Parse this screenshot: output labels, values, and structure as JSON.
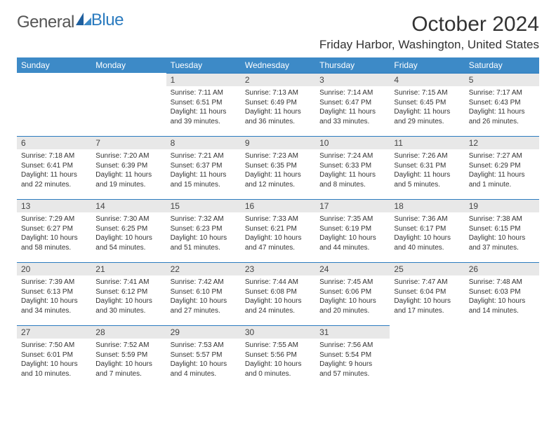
{
  "brand": {
    "part1": "General",
    "part2": "Blue"
  },
  "title": "October 2024",
  "location": "Friday Harbor, Washington, United States",
  "header_bg": "#3d8ac7",
  "daynum_bg": "#e8e8e8",
  "border_color": "#2b7bbf",
  "weekdays": [
    "Sunday",
    "Monday",
    "Tuesday",
    "Wednesday",
    "Thursday",
    "Friday",
    "Saturday"
  ],
  "weeks": [
    [
      null,
      null,
      {
        "n": "1",
        "sr": "Sunrise: 7:11 AM",
        "ss": "Sunset: 6:51 PM",
        "dl": "Daylight: 11 hours and 39 minutes."
      },
      {
        "n": "2",
        "sr": "Sunrise: 7:13 AM",
        "ss": "Sunset: 6:49 PM",
        "dl": "Daylight: 11 hours and 36 minutes."
      },
      {
        "n": "3",
        "sr": "Sunrise: 7:14 AM",
        "ss": "Sunset: 6:47 PM",
        "dl": "Daylight: 11 hours and 33 minutes."
      },
      {
        "n": "4",
        "sr": "Sunrise: 7:15 AM",
        "ss": "Sunset: 6:45 PM",
        "dl": "Daylight: 11 hours and 29 minutes."
      },
      {
        "n": "5",
        "sr": "Sunrise: 7:17 AM",
        "ss": "Sunset: 6:43 PM",
        "dl": "Daylight: 11 hours and 26 minutes."
      }
    ],
    [
      {
        "n": "6",
        "sr": "Sunrise: 7:18 AM",
        "ss": "Sunset: 6:41 PM",
        "dl": "Daylight: 11 hours and 22 minutes."
      },
      {
        "n": "7",
        "sr": "Sunrise: 7:20 AM",
        "ss": "Sunset: 6:39 PM",
        "dl": "Daylight: 11 hours and 19 minutes."
      },
      {
        "n": "8",
        "sr": "Sunrise: 7:21 AM",
        "ss": "Sunset: 6:37 PM",
        "dl": "Daylight: 11 hours and 15 minutes."
      },
      {
        "n": "9",
        "sr": "Sunrise: 7:23 AM",
        "ss": "Sunset: 6:35 PM",
        "dl": "Daylight: 11 hours and 12 minutes."
      },
      {
        "n": "10",
        "sr": "Sunrise: 7:24 AM",
        "ss": "Sunset: 6:33 PM",
        "dl": "Daylight: 11 hours and 8 minutes."
      },
      {
        "n": "11",
        "sr": "Sunrise: 7:26 AM",
        "ss": "Sunset: 6:31 PM",
        "dl": "Daylight: 11 hours and 5 minutes."
      },
      {
        "n": "12",
        "sr": "Sunrise: 7:27 AM",
        "ss": "Sunset: 6:29 PM",
        "dl": "Daylight: 11 hours and 1 minute."
      }
    ],
    [
      {
        "n": "13",
        "sr": "Sunrise: 7:29 AM",
        "ss": "Sunset: 6:27 PM",
        "dl": "Daylight: 10 hours and 58 minutes."
      },
      {
        "n": "14",
        "sr": "Sunrise: 7:30 AM",
        "ss": "Sunset: 6:25 PM",
        "dl": "Daylight: 10 hours and 54 minutes."
      },
      {
        "n": "15",
        "sr": "Sunrise: 7:32 AM",
        "ss": "Sunset: 6:23 PM",
        "dl": "Daylight: 10 hours and 51 minutes."
      },
      {
        "n": "16",
        "sr": "Sunrise: 7:33 AM",
        "ss": "Sunset: 6:21 PM",
        "dl": "Daylight: 10 hours and 47 minutes."
      },
      {
        "n": "17",
        "sr": "Sunrise: 7:35 AM",
        "ss": "Sunset: 6:19 PM",
        "dl": "Daylight: 10 hours and 44 minutes."
      },
      {
        "n": "18",
        "sr": "Sunrise: 7:36 AM",
        "ss": "Sunset: 6:17 PM",
        "dl": "Daylight: 10 hours and 40 minutes."
      },
      {
        "n": "19",
        "sr": "Sunrise: 7:38 AM",
        "ss": "Sunset: 6:15 PM",
        "dl": "Daylight: 10 hours and 37 minutes."
      }
    ],
    [
      {
        "n": "20",
        "sr": "Sunrise: 7:39 AM",
        "ss": "Sunset: 6:13 PM",
        "dl": "Daylight: 10 hours and 34 minutes."
      },
      {
        "n": "21",
        "sr": "Sunrise: 7:41 AM",
        "ss": "Sunset: 6:12 PM",
        "dl": "Daylight: 10 hours and 30 minutes."
      },
      {
        "n": "22",
        "sr": "Sunrise: 7:42 AM",
        "ss": "Sunset: 6:10 PM",
        "dl": "Daylight: 10 hours and 27 minutes."
      },
      {
        "n": "23",
        "sr": "Sunrise: 7:44 AM",
        "ss": "Sunset: 6:08 PM",
        "dl": "Daylight: 10 hours and 24 minutes."
      },
      {
        "n": "24",
        "sr": "Sunrise: 7:45 AM",
        "ss": "Sunset: 6:06 PM",
        "dl": "Daylight: 10 hours and 20 minutes."
      },
      {
        "n": "25",
        "sr": "Sunrise: 7:47 AM",
        "ss": "Sunset: 6:04 PM",
        "dl": "Daylight: 10 hours and 17 minutes."
      },
      {
        "n": "26",
        "sr": "Sunrise: 7:48 AM",
        "ss": "Sunset: 6:03 PM",
        "dl": "Daylight: 10 hours and 14 minutes."
      }
    ],
    [
      {
        "n": "27",
        "sr": "Sunrise: 7:50 AM",
        "ss": "Sunset: 6:01 PM",
        "dl": "Daylight: 10 hours and 10 minutes."
      },
      {
        "n": "28",
        "sr": "Sunrise: 7:52 AM",
        "ss": "Sunset: 5:59 PM",
        "dl": "Daylight: 10 hours and 7 minutes."
      },
      {
        "n": "29",
        "sr": "Sunrise: 7:53 AM",
        "ss": "Sunset: 5:57 PM",
        "dl": "Daylight: 10 hours and 4 minutes."
      },
      {
        "n": "30",
        "sr": "Sunrise: 7:55 AM",
        "ss": "Sunset: 5:56 PM",
        "dl": "Daylight: 10 hours and 0 minutes."
      },
      {
        "n": "31",
        "sr": "Sunrise: 7:56 AM",
        "ss": "Sunset: 5:54 PM",
        "dl": "Daylight: 9 hours and 57 minutes."
      },
      null,
      null
    ]
  ]
}
